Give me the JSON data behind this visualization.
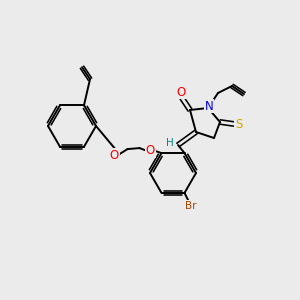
{
  "bg_color": "#ebebeb",
  "bond_color": "#000000",
  "atom_colors": {
    "O": "#ff0000",
    "N": "#0000ff",
    "S": "#ccaa00",
    "Br": "#aa4400",
    "H": "#008888",
    "C": "#000000"
  },
  "figsize": [
    3.0,
    3.0
  ],
  "dpi": 100
}
